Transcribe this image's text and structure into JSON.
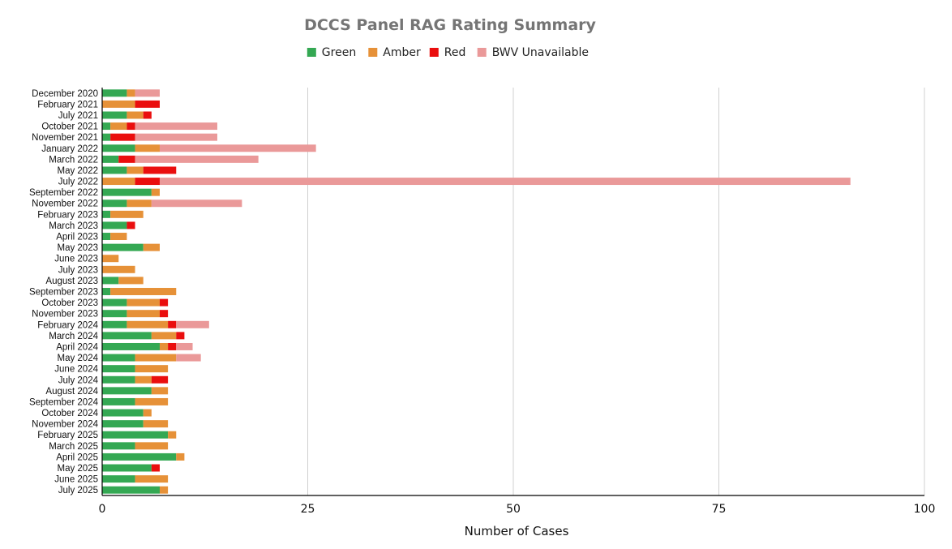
{
  "chart_data": {
    "type": "bar",
    "orientation": "horizontal",
    "stacked": true,
    "title": "DCCS Panel RAG Rating Summary",
    "xlabel": "Number of Cases",
    "ylabel": "",
    "xlim": [
      0,
      100
    ],
    "xticks": [
      0,
      25,
      50,
      75,
      100
    ],
    "grid": true,
    "legend_position": "top",
    "categories": [
      "December 2020",
      "February 2021",
      "July 2021",
      "October 2021",
      "November 2021",
      "January 2022",
      "March 2022",
      "May 2022",
      "July 2022",
      "September 2022",
      "November 2022",
      "February 2023",
      "March 2023",
      "April 2023",
      "May 2023",
      "June 2023",
      "July 2023",
      "August 2023",
      "September 2023",
      "October 2023",
      "November 2023",
      "February 2024",
      "March 2024",
      "April 2024",
      "May 2024",
      "June 2024",
      "July 2024",
      "August 2024",
      "September 2024",
      "October 2024",
      "November 2024",
      "February 2025",
      "March 2025",
      "April 2025",
      "May 2025",
      "June 2025",
      "July 2025"
    ],
    "series": [
      {
        "name": "Green",
        "color": "#34a853",
        "values": [
          3,
          0,
          3,
          1,
          1,
          4,
          2,
          3,
          0,
          6,
          3,
          1,
          3,
          1,
          5,
          0,
          0,
          2,
          1,
          3,
          3,
          3,
          6,
          7,
          4,
          4,
          4,
          6,
          4,
          5,
          5,
          8,
          4,
          9,
          6,
          4,
          7
        ]
      },
      {
        "name": "Amber",
        "color": "#e69138",
        "values": [
          1,
          4,
          2,
          2,
          0,
          3,
          0,
          2,
          4,
          1,
          3,
          4,
          0,
          2,
          2,
          2,
          4,
          3,
          8,
          4,
          4,
          5,
          3,
          1,
          5,
          4,
          2,
          2,
          4,
          1,
          3,
          1,
          4,
          1,
          0,
          4,
          1
        ]
      },
      {
        "name": "Red",
        "color": "#ea0e0e",
        "values": [
          0,
          3,
          1,
          1,
          3,
          0,
          2,
          4,
          3,
          0,
          0,
          0,
          1,
          0,
          0,
          0,
          0,
          0,
          0,
          1,
          1,
          1,
          1,
          1,
          0,
          0,
          2,
          0,
          0,
          0,
          0,
          0,
          0,
          0,
          1,
          0,
          0
        ]
      },
      {
        "name": "BWV Unavailable",
        "color": "#ea9999",
        "values": [
          3,
          0,
          0,
          10,
          10,
          19,
          15,
          0,
          84,
          0,
          11,
          0,
          0,
          0,
          0,
          0,
          0,
          0,
          0,
          0,
          0,
          4,
          0,
          2,
          3,
          0,
          0,
          0,
          0,
          0,
          0,
          0,
          0,
          0,
          0,
          0,
          0
        ]
      }
    ]
  }
}
